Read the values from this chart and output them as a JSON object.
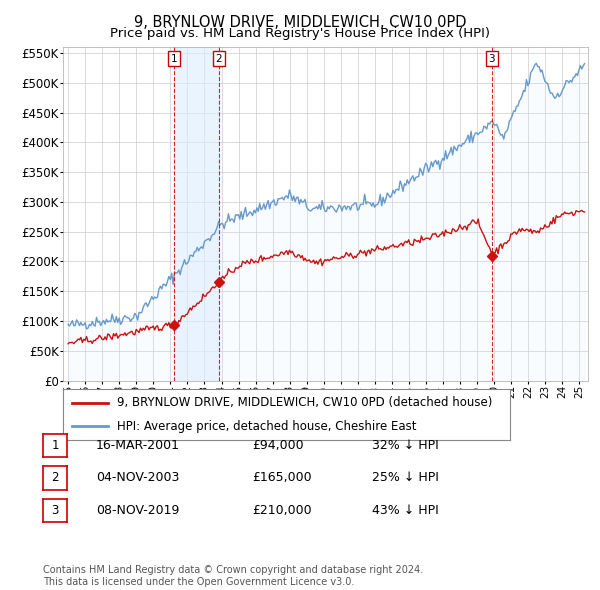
{
  "title": "9, BRYNLOW DRIVE, MIDDLEWICH, CW10 0PD",
  "subtitle": "Price paid vs. HM Land Registry's House Price Index (HPI)",
  "ylim": [
    0,
    560000
  ],
  "yticks": [
    0,
    50000,
    100000,
    150000,
    200000,
    250000,
    300000,
    350000,
    400000,
    450000,
    500000,
    550000
  ],
  "xlim_start": 1994.7,
  "xlim_end": 2025.5,
  "transactions": [
    {
      "date_num": 2001.21,
      "price": 94000,
      "label": "1"
    },
    {
      "date_num": 2003.84,
      "price": 165000,
      "label": "2"
    },
    {
      "date_num": 2019.86,
      "price": 210000,
      "label": "3"
    }
  ],
  "legend_entries": [
    {
      "color": "#cc1111",
      "label": "9, BRYNLOW DRIVE, MIDDLEWICH, CW10 0PD (detached house)"
    },
    {
      "color": "#6699cc",
      "label": "HPI: Average price, detached house, Cheshire East"
    }
  ],
  "table_rows": [
    {
      "num": "1",
      "date": "16-MAR-2001",
      "price": "£94,000",
      "note": "32% ↓ HPI"
    },
    {
      "num": "2",
      "date": "04-NOV-2003",
      "price": "£165,000",
      "note": "25% ↓ HPI"
    },
    {
      "num": "3",
      "date": "08-NOV-2019",
      "price": "£210,000",
      "note": "43% ↓ HPI"
    }
  ],
  "footnote": "Contains HM Land Registry data © Crown copyright and database right 2024.\nThis data is licensed under the Open Government Licence v3.0.",
  "background_color": "#ffffff",
  "grid_color": "#cccccc",
  "hpi_color": "#6699cc",
  "hpi_fill_color": "#ddeeff",
  "price_color": "#cc1111",
  "vline_color": "#cc0000",
  "marker_box_color": "#cc0000"
}
